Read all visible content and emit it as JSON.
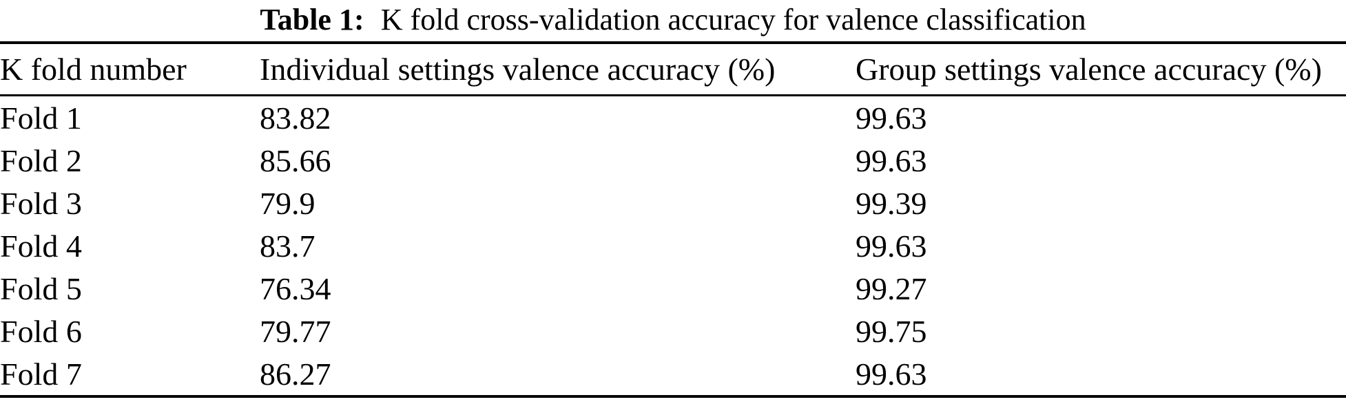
{
  "caption": {
    "label": "Table 1:",
    "text": "K fold cross-validation accuracy for valence classification"
  },
  "table": {
    "columns": [
      "K fold number",
      "Individual settings valence accuracy (%)",
      "Group settings valence accuracy (%)"
    ],
    "rows": [
      {
        "fold": "Fold 1",
        "individual": "83.82",
        "group": "99.63"
      },
      {
        "fold": "Fold 2",
        "individual": "85.66",
        "group": "99.63"
      },
      {
        "fold": "Fold 3",
        "individual": "79.9",
        "group": "99.39"
      },
      {
        "fold": "Fold 4",
        "individual": "83.7",
        "group": "99.63"
      },
      {
        "fold": "Fold 5",
        "individual": "76.34",
        "group": "99.27"
      },
      {
        "fold": "Fold 6",
        "individual": "79.77",
        "group": "99.75"
      },
      {
        "fold": "Fold 7",
        "individual": "86.27",
        "group": "99.63"
      }
    ]
  },
  "colors": {
    "background": "#ffffff",
    "text": "#000000",
    "rule": "#000000"
  },
  "chart_data": {
    "type": "table",
    "title": "Table 1: K fold cross-validation accuracy for valence classification",
    "categories": [
      "Fold 1",
      "Fold 2",
      "Fold 3",
      "Fold 4",
      "Fold 5",
      "Fold 6",
      "Fold 7"
    ],
    "series": [
      {
        "name": "Individual settings valence accuracy (%)",
        "values": [
          83.82,
          85.66,
          79.9,
          83.7,
          76.34,
          79.77,
          86.27
        ]
      },
      {
        "name": "Group settings valence accuracy (%)",
        "values": [
          99.63,
          99.63,
          99.39,
          99.63,
          99.27,
          99.75,
          99.63
        ]
      }
    ]
  }
}
